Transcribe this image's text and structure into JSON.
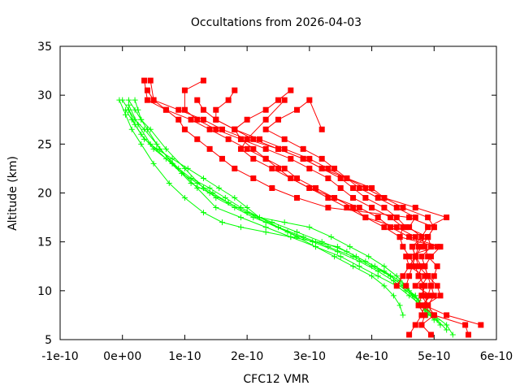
{
  "chart_data": {
    "type": "line",
    "title": "Occultations from 2026-04-03",
    "xlabel": "CFC12 VMR",
    "ylabel": "Altitude (km)",
    "xlim": [
      -1e-10,
      6e-10
    ],
    "ylim": [
      5,
      35
    ],
    "x_ticks": [
      -1e-10,
      0,
      1e-10,
      2e-10,
      3e-10,
      4e-10,
      5e-10,
      6e-10
    ],
    "x_tick_labels": [
      "-1e-10",
      "0e+00",
      "1e-10",
      "2e-10",
      "3e-10",
      "4e-10",
      "5e-10",
      "6e-10"
    ],
    "y_ticks": [
      5,
      10,
      15,
      20,
      25,
      30,
      35
    ],
    "y_tick_labels": [
      "5",
      "10",
      "15",
      "20",
      "25",
      "30",
      "35"
    ],
    "series_colors": {
      "red": "#ff0000",
      "green": "#00ff00"
    },
    "series": [
      {
        "name": "red-1",
        "color": "red",
        "marker": "square",
        "x": [
          4.6e-10,
          4.7e-10,
          4.8e-10,
          4.85e-10,
          4.9e-10,
          4.95e-10,
          5e-10,
          5.05e-10,
          4.9e-10,
          4.85e-10,
          4.8e-10,
          4.9e-10,
          5.2e-10,
          4.7e-10,
          4.2e-10,
          3.9e-10,
          3.6e-10,
          3.2e-10,
          2.9e-10,
          2.5e-10,
          2e-10,
          1.6e-10,
          1.3e-10,
          9e-11,
          5e-11,
          4e-11
        ],
        "y": [
          5.5,
          6.5,
          7.5,
          8.5,
          9.5,
          10.5,
          11.5,
          12.5,
          13.5,
          14.5,
          15.5,
          16.5,
          17.5,
          18.5,
          19.5,
          20.5,
          21.5,
          22.5,
          23.5,
          24.5,
          25.5,
          26.5,
          27.5,
          28.5,
          29.5,
          30.5
        ]
      },
      {
        "name": "red-2",
        "color": "red",
        "marker": "square",
        "x": [
          5.55e-10,
          5.5e-10,
          5e-10,
          4.9e-10,
          5e-10,
          4.95e-10,
          4.9e-10,
          4.85e-10,
          4.95e-10,
          5.1e-10,
          4.6e-10,
          4.3e-10,
          4.1e-10,
          3.8e-10,
          3.4e-10,
          3.1e-10,
          2.8e-10,
          2.6e-10,
          2.3e-10,
          2e-10,
          1.7e-10,
          1.4e-10,
          1.1e-10,
          7e-11,
          4e-11,
          3.5e-11
        ],
        "y": [
          5.5,
          6.5,
          7.5,
          8.5,
          9.5,
          10.5,
          11.5,
          12.5,
          13.5,
          14.5,
          15.5,
          16.5,
          17.5,
          18.5,
          19.5,
          20.5,
          21.5,
          22.5,
          23.5,
          24.5,
          25.5,
          26.5,
          27.5,
          28.5,
          29.5,
          31.5
        ]
      },
      {
        "name": "red-3",
        "color": "red",
        "marker": "square",
        "x": [
          4.8e-10,
          4.85e-10,
          4.75e-10,
          4.8e-10,
          4.85e-10,
          4.75e-10,
          4.7e-10,
          4.6e-10,
          4.5e-10,
          4.45e-10,
          4.5e-10,
          4.3e-10,
          4e-10,
          3.7e-10,
          3.5e-10,
          3.3e-10,
          3e-10,
          2.7e-10,
          2.3e-10,
          1.9e-10,
          1.5e-10,
          1.2e-10,
          1e-10,
          1e-10,
          1.3e-10
        ],
        "y": [
          6.5,
          7.5,
          8.5,
          9.5,
          10.5,
          11.5,
          12.5,
          13.5,
          14.5,
          15.5,
          16.5,
          17.5,
          18.5,
          19.5,
          20.5,
          21.5,
          22.5,
          23.5,
          24.5,
          25.5,
          26.5,
          27.5,
          28.5,
          30.5,
          31.5
        ]
      },
      {
        "name": "red-4",
        "color": "red",
        "marker": "square",
        "x": [
          5.75e-10,
          5.2e-10,
          4.85e-10,
          5.1e-10,
          5.05e-10,
          4.9e-10,
          4.75e-10,
          4.7e-10,
          4.65e-10,
          4.9e-10,
          5e-10,
          4.9e-10,
          4.5e-10,
          4.2e-10,
          4e-10,
          3.6e-10,
          3.3e-10,
          3e-10,
          2.6e-10,
          2.2e-10,
          1.8e-10,
          1.5e-10,
          1.5e-10,
          1.7e-10,
          1.8e-10
        ],
        "y": [
          6.5,
          7.5,
          8.5,
          9.5,
          10.5,
          11.5,
          12.5,
          13.5,
          14.5,
          15.5,
          16.5,
          17.5,
          18.5,
          19.5,
          20.5,
          21.5,
          22.5,
          23.5,
          24.5,
          25.5,
          26.5,
          27.5,
          28.5,
          29.5,
          30.5
        ]
      },
      {
        "name": "red-5",
        "color": "red",
        "marker": "square",
        "x": [
          4.95e-10,
          4.8e-10,
          5e-10,
          4.8e-10,
          4.95e-10,
          4.7e-10,
          4.85e-10,
          4.6e-10,
          4.55e-10,
          5.05e-10,
          4.45e-10,
          4.2e-10,
          3.9e-10,
          3.7e-10,
          3.4e-10,
          3e-10,
          2.7e-10,
          2.4e-10,
          2.1e-10,
          1.9e-10,
          2e-10,
          2.3e-10,
          2.6e-10
        ],
        "y": [
          5.5,
          6.5,
          7.5,
          8.5,
          9.5,
          10.5,
          11.5,
          12.5,
          13.5,
          14.5,
          15.5,
          16.5,
          17.5,
          18.5,
          19.5,
          20.5,
          21.5,
          22.5,
          23.5,
          24.5,
          25.5,
          27.5,
          29.5
        ]
      },
      {
        "name": "red-6",
        "color": "red",
        "marker": "square",
        "x": [
          5e-10,
          4.9e-10,
          4.8e-10,
          4.85e-10,
          4.75e-10,
          4.8e-10,
          4.7e-10,
          4.65e-10,
          4.8e-10,
          4.6e-10,
          4.7e-10,
          4.4e-10,
          4.1e-10,
          3.8e-10,
          3.6e-10,
          3.4e-10,
          3.2e-10,
          2.9e-10,
          2.6e-10,
          2.3e-10,
          2.5e-10,
          2.8e-10,
          3e-10,
          3.2e-10
        ],
        "y": [
          7.5,
          8.5,
          9.5,
          10.5,
          11.5,
          12.5,
          13.5,
          14.5,
          15.5,
          16.5,
          17.5,
          18.5,
          19.5,
          20.5,
          21.5,
          22.5,
          23.5,
          24.5,
          25.5,
          26.5,
          27.5,
          28.5,
          29.5,
          26.5
        ]
      },
      {
        "name": "red-7",
        "color": "red",
        "marker": "square",
        "x": [
          4.9e-10,
          4.85e-10,
          4.8e-10,
          4.9e-10,
          4.85e-10,
          4.8e-10,
          4.95e-10,
          4.9e-10,
          4.55e-10,
          4.4e-10,
          4.2e-10,
          3.9e-10,
          3.7e-10,
          3.5e-10,
          3.2e-10,
          2.9e-10,
          2.5e-10,
          2.1e-10,
          1.8e-10,
          1.5e-10,
          1.3e-10,
          1.2e-10
        ],
        "y": [
          8.5,
          9.5,
          10.5,
          11.5,
          12.5,
          13.5,
          14.5,
          15.5,
          16.5,
          17.5,
          18.5,
          19.5,
          20.5,
          21.5,
          22.5,
          23.5,
          24.5,
          25.5,
          26.5,
          27.5,
          28.5,
          29.5
        ]
      },
      {
        "name": "red-8",
        "color": "red",
        "marker": "square",
        "x": [
          4.4e-10,
          4.5e-10,
          4.6e-10,
          4.7e-10,
          4.8e-10,
          4.9e-10,
          5e-10,
          4.6e-10,
          3.3e-10,
          2.8e-10,
          2.4e-10,
          2.1e-10,
          1.8e-10,
          1.6e-10,
          1.4e-10,
          1.2e-10,
          1e-10,
          9e-11,
          7e-11,
          5e-11,
          4.5e-11
        ],
        "y": [
          10.5,
          11.5,
          12.5,
          13.5,
          14.5,
          15.5,
          16.5,
          17.5,
          18.5,
          19.5,
          20.5,
          21.5,
          22.5,
          23.5,
          24.5,
          25.5,
          26.5,
          27.5,
          28.5,
          29.5,
          31.5
        ]
      },
      {
        "name": "red-9",
        "color": "red",
        "marker": "square",
        "x": [
          4.55e-10,
          4.6e-10,
          4.65e-10,
          4.7e-10,
          4.75e-10,
          4.7e-10,
          4.4e-10,
          3.9e-10,
          3.6e-10,
          3.3e-10,
          3e-10,
          2.7e-10,
          2.5e-10,
          2.3e-10,
          2.1e-10,
          1.9e-10,
          1.8e-10,
          2e-10,
          2.3e-10,
          2.5e-10,
          2.7e-10
        ],
        "y": [
          10.5,
          11.5,
          12.5,
          13.5,
          14.5,
          15.5,
          16.5,
          17.5,
          18.5,
          19.5,
          20.5,
          21.5,
          22.5,
          23.5,
          24.5,
          25.5,
          26.5,
          27.5,
          28.5,
          29.5,
          30.5
        ]
      },
      {
        "name": "green-1",
        "color": "green",
        "marker": "plus",
        "x": [
          5.3e-10,
          5.2e-10,
          5e-10,
          4.8e-10,
          4.6e-10,
          4.4e-10,
          4.1e-10,
          3.8e-10,
          3.5e-10,
          3.1e-10,
          2.7e-10,
          2.3e-10,
          1.9e-10,
          1.5e-10,
          1.2e-10,
          9e-11,
          6e-11,
          4e-11,
          3e-11,
          2.5e-11,
          2e-11
        ],
        "y": [
          5.5,
          6.5,
          7.5,
          8.5,
          9.5,
          10.5,
          11.5,
          12.5,
          13.5,
          14.5,
          15.5,
          16.5,
          17.5,
          18.5,
          20.5,
          22.5,
          24.5,
          26.5,
          27.5,
          28.5,
          29.5
        ]
      },
      {
        "name": "green-2",
        "color": "green",
        "marker": "plus",
        "x": [
          5.1e-10,
          4.95e-10,
          4.8e-10,
          4.7e-10,
          4.5e-10,
          4.3e-10,
          4e-10,
          3.7e-10,
          3.3e-10,
          2.9e-10,
          2.5e-10,
          2.1e-10,
          1.8e-10,
          1.5e-10,
          1.3e-10,
          1e-10,
          7e-11,
          4.5e-11,
          3e-11,
          2e-11,
          1e-11
        ],
        "y": [
          6.5,
          7.5,
          8.5,
          9.5,
          10.5,
          11.5,
          12.5,
          13.5,
          14.5,
          15.5,
          16.5,
          17.5,
          18.5,
          19.5,
          20.5,
          22.5,
          24.5,
          26.5,
          27.5,
          28.5,
          29.5
        ]
      },
      {
        "name": "green-3",
        "color": "green",
        "marker": "plus",
        "x": [
          5e-10,
          4.85e-10,
          4.75e-10,
          4.6e-10,
          4.45e-10,
          4.2e-10,
          3.9e-10,
          3.6e-10,
          3.2e-10,
          2.8e-10,
          2.4e-10,
          2e-10,
          1.7e-10,
          1.4e-10,
          1.1e-10,
          8e-11,
          5.5e-11,
          3.5e-11,
          2e-11,
          1e-11,
          0.0
        ],
        "y": [
          7.0,
          8.0,
          9.0,
          10.0,
          11.0,
          12.0,
          13.0,
          14.0,
          15.0,
          16.0,
          17.0,
          18.0,
          19.0,
          20.0,
          21.0,
          23.0,
          25.0,
          26.5,
          27.5,
          28.5,
          29.5
        ]
      },
      {
        "name": "green-4",
        "color": "green",
        "marker": "plus",
        "x": [
          4.9e-10,
          4.8e-10,
          4.7e-10,
          4.5e-10,
          4.3e-10,
          4.05e-10,
          3.75e-10,
          3.45e-10,
          3.1e-10,
          2.7e-10,
          2.3e-10,
          1.9e-10,
          1.6e-10,
          1.3e-10,
          1e-10,
          7.5e-11,
          5e-11,
          3e-11,
          1.5e-11,
          5e-12,
          -5e-12
        ],
        "y": [
          7.5,
          8.5,
          9.5,
          10.5,
          11.5,
          12.5,
          13.5,
          14.5,
          15.0,
          15.5,
          16.0,
          16.5,
          17.0,
          18.0,
          19.5,
          21.0,
          23.0,
          25.0,
          26.5,
          28.0,
          29.5
        ]
      },
      {
        "name": "green-5",
        "color": "green",
        "marker": "plus",
        "x": [
          4.75e-10,
          4.65e-10,
          4.55e-10,
          4.4e-10,
          4.2e-10,
          3.95e-10,
          3.65e-10,
          3.35e-10,
          3e-10,
          2.6e-10,
          2.2e-10,
          1.9e-10,
          1.65e-10,
          1.4e-10,
          1.1e-10,
          8e-11,
          5e-11,
          3e-11,
          1.5e-11,
          5e-12
        ],
        "y": [
          8.5,
          9.5,
          10.5,
          11.5,
          12.5,
          13.5,
          14.5,
          15.5,
          16.5,
          17.0,
          17.5,
          18.5,
          19.5,
          20.5,
          21.5,
          23.0,
          24.5,
          26.0,
          27.5,
          28.5
        ]
      },
      {
        "name": "green-6",
        "color": "green",
        "marker": "plus",
        "x": [
          4.5e-10,
          4.45e-10,
          4.35e-10,
          4.2e-10,
          4e-10,
          3.7e-10,
          3.4e-10,
          3.1e-10,
          2.8e-10,
          2.5e-10,
          2.2e-10,
          2e-10,
          1.8e-10,
          1.55e-10,
          1.3e-10,
          1.05e-10,
          8e-11,
          5.5e-11,
          3.5e-11,
          2e-11,
          1e-11
        ],
        "y": [
          7.5,
          8.5,
          9.5,
          10.5,
          11.5,
          12.5,
          13.5,
          14.5,
          15.5,
          16.5,
          17.5,
          18.5,
          19.5,
          20.5,
          21.5,
          22.5,
          23.5,
          24.5,
          25.5,
          27.0,
          28.5
        ]
      },
      {
        "name": "green-7",
        "color": "green",
        "marker": "plus",
        "x": [
          5.2e-10,
          5.05e-10,
          4.9e-10,
          4.75e-10,
          4.55e-10,
          4.35e-10,
          4.1e-10,
          3.8e-10,
          3.45e-10,
          3.05e-10,
          2.65e-10,
          2.3e-10,
          2e-10,
          1.7e-10,
          1.45e-10,
          1.2e-10,
          9.5e-11,
          7e-11,
          4.5e-11,
          2.5e-11,
          1e-11
        ],
        "y": [
          6.0,
          7.0,
          8.0,
          9.0,
          10.0,
          11.0,
          12.0,
          13.0,
          14.0,
          15.0,
          16.0,
          17.0,
          18.0,
          19.0,
          20.0,
          21.0,
          22.0,
          23.5,
          25.0,
          27.0,
          29.0
        ]
      }
    ]
  }
}
